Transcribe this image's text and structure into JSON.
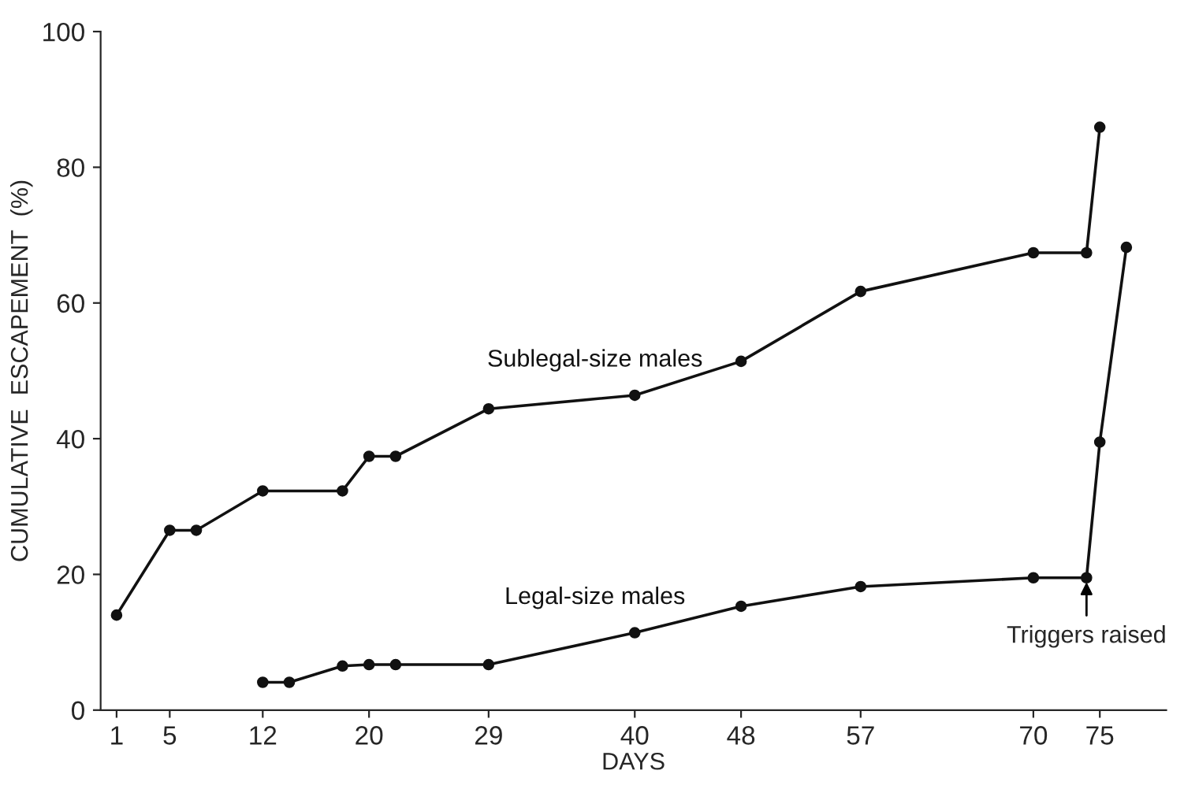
{
  "chart_data": {
    "type": "line",
    "xlabel": "DAYS",
    "ylabel": "CUMULATIVE  ESCAPEMENT  (%)",
    "xlim": [
      -0.2,
      80
    ],
    "ylim": [
      0,
      100
    ],
    "xticks": [
      1,
      5,
      12,
      20,
      29,
      40,
      48,
      57,
      70,
      75
    ],
    "yticks": [
      0,
      20,
      40,
      60,
      80,
      100
    ],
    "grid": false,
    "marker": "circle",
    "line_style": "solid",
    "series": [
      {
        "name": "Sublegal-size males",
        "color": "#111111",
        "x": [
          1,
          5,
          7,
          12,
          18,
          20,
          22,
          29,
          40,
          48,
          57,
          70,
          74,
          75
        ],
        "values": [
          14,
          26.5,
          26.5,
          32.3,
          32.3,
          37.4,
          37.4,
          44.4,
          46.4,
          51.4,
          61.7,
          67.4,
          67.4,
          85.9
        ]
      },
      {
        "name": "Legal-size males",
        "color": "#111111",
        "x": [
          12,
          14,
          18,
          20,
          22,
          29,
          40,
          48,
          57,
          70,
          74,
          75,
          77
        ],
        "values": [
          4.1,
          4.1,
          6.5,
          6.7,
          6.7,
          6.7,
          11.4,
          15.3,
          18.2,
          19.5,
          19.5,
          39.5,
          68.2
        ]
      }
    ],
    "annotations": [
      {
        "text": "Triggers raised",
        "x": 74,
        "y": 19.5
      }
    ]
  }
}
